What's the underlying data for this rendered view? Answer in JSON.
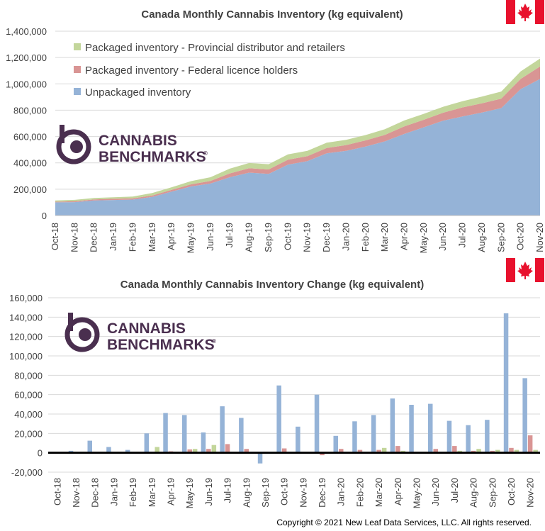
{
  "logo": {
    "line1": "CANNABIS",
    "line2": "BENCHMARKS",
    "mark": "®"
  },
  "copyright": "Copyright © 2021 New Leaf Data Services, LLC. All rights reserved.",
  "colors": {
    "unpackaged": "#95b3d7",
    "federal": "#d99594",
    "provincial": "#c3d69b",
    "brand": "#4a2f4f",
    "flag_red": "#e8112d"
  },
  "chart_data": [
    {
      "type": "area",
      "stacked": true,
      "title": "Canada Monthly  Cannabis  Inventory  (kg equivalent)",
      "categories": [
        "Oct-18",
        "Nov-18",
        "Dec-18",
        "Jan-19",
        "Feb-19",
        "Mar-19",
        "Apr-19",
        "May-19",
        "Jun-19",
        "Jul-19",
        "Aug-19",
        "Sep-19",
        "Oct-19",
        "Nov-19",
        "Dec-19",
        "Jan-20",
        "Feb-20",
        "Mar-20",
        "Apr-20",
        "May-20",
        "Jun-20",
        "Jul-20",
        "Aug-20",
        "Sep-20",
        "Oct-20",
        "Nov-20"
      ],
      "ylim": [
        0,
        1400000
      ],
      "yticks": [
        "0",
        "200,000",
        "400,000",
        "600,000",
        "800,000",
        "1,000,000",
        "1,200,000",
        "1,400,000"
      ],
      "legend_position": "top-left",
      "series": [
        {
          "name": "Unpackaged inventory",
          "values": [
            100000,
            102000,
            114000,
            118000,
            121000,
            141000,
            182000,
            221000,
            243000,
            291000,
            326000,
            316000,
            386000,
            413000,
            473000,
            491000,
            524000,
            563000,
            620000,
            670000,
            720000,
            753000,
            782000,
            816000,
            960000,
            1037000
          ]
        },
        {
          "name": "Packaged inventory - Federal licence holders",
          "values": [
            5000,
            7000,
            8000,
            9000,
            10000,
            11000,
            13000,
            16000,
            20000,
            29000,
            33000,
            34000,
            38000,
            38000,
            40000,
            44000,
            47000,
            50000,
            57000,
            57000,
            61000,
            68000,
            70000,
            72000,
            77000,
            95000
          ]
        },
        {
          "name": "Packaged inventory - Provincial distributor and retailers",
          "values": [
            9000,
            10000,
            11000,
            12000,
            13000,
            19000,
            20000,
            24000,
            28000,
            36000,
            40000,
            40000,
            40000,
            40000,
            40000,
            40000,
            40000,
            43000,
            45000,
            45000,
            45000,
            47000,
            51000,
            54000,
            57000,
            60000
          ]
        }
      ]
    },
    {
      "type": "bar",
      "title": "Canada Monthly Cannabis Inventory Change (kg equivalent)",
      "categories": [
        "Oct-18",
        "Nov-18",
        "Dec-18",
        "Jan-19",
        "Feb-19",
        "Mar-19",
        "Apr-19",
        "May-19",
        "Jun-19",
        "Jul-19",
        "Aug-19",
        "Sep-19",
        "Oct-19",
        "Nov-19",
        "Dec-19",
        "Jan-20",
        "Feb-20",
        "Mar-20",
        "Apr-20",
        "May-20",
        "Jun-20",
        "Jul-20",
        "Aug-20",
        "Sep-20",
        "Oct-20",
        "Nov-20"
      ],
      "ylim": [
        -20000,
        160000
      ],
      "yticks": [
        "-20,000",
        "0",
        "20,000",
        "40,000",
        "60,000",
        "80,000",
        "100,000",
        "120,000",
        "140,000",
        "160,000"
      ],
      "series": [
        {
          "name": "Unpackaged inventory",
          "values": [
            0,
            2000,
            12500,
            6000,
            3000,
            20000,
            41000,
            39000,
            21000,
            48000,
            36000,
            -11000,
            69500,
            27000,
            60000,
            17500,
            32500,
            39000,
            56000,
            49500,
            50500,
            33000,
            28500,
            34000,
            144000,
            77000
          ]
        },
        {
          "name": "Packaged inventory - Federal licence holders",
          "values": [
            0,
            500,
            800,
            700,
            500,
            500,
            1500,
            3500,
            4000,
            9000,
            4000,
            1000,
            4500,
            0,
            -2500,
            4000,
            3000,
            3000,
            7000,
            0,
            4000,
            7000,
            2000,
            2000,
            5000,
            18000
          ]
        },
        {
          "name": "Packaged inventory - Provincial distributor and retailers",
          "values": [
            0,
            1000,
            1000,
            1000,
            1000,
            6000,
            1000,
            4000,
            8000,
            500,
            0,
            0,
            0,
            0,
            0,
            0,
            0,
            5000,
            2000,
            0,
            0,
            2000,
            4000,
            3000,
            3000,
            3000
          ]
        }
      ]
    }
  ]
}
